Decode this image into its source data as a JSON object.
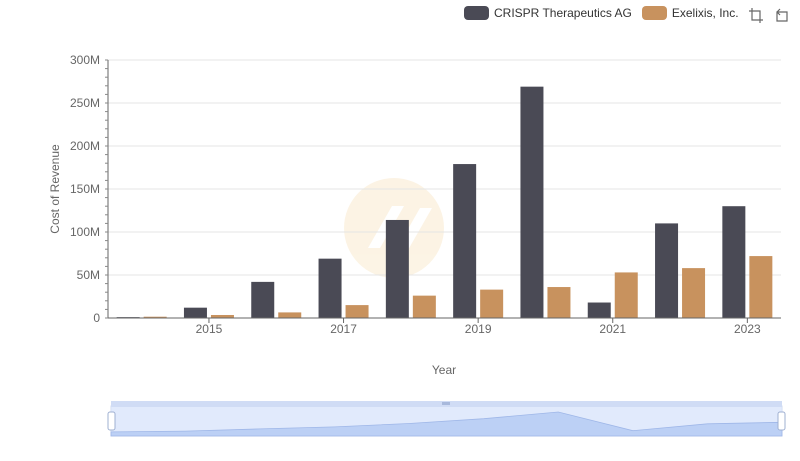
{
  "legend": {
    "items": [
      {
        "label": "CRISPR Therapeutics AG",
        "color": "#4a4a55"
      },
      {
        "label": "Exelixis, Inc.",
        "color": "#c8925e"
      }
    ]
  },
  "toolbox": {
    "icons": [
      "zoom-icon",
      "reset-icon"
    ]
  },
  "chart_data": {
    "type": "bar",
    "categories": [
      "2014",
      "2015",
      "2016",
      "2017",
      "2018",
      "2019",
      "2020",
      "2021",
      "2022",
      "2023"
    ],
    "x_tick_labels": [
      "2015",
      "2017",
      "2019",
      "2021",
      "2023"
    ],
    "y_tick_labels": [
      "0",
      "50M",
      "100M",
      "150M",
      "200M",
      "250M",
      "300M"
    ],
    "ylabel": "Cost of Revenue",
    "xlabel": "Year",
    "ylim": [
      0,
      300000000
    ],
    "series": [
      {
        "name": "CRISPR Therapeutics AG",
        "color": "#4a4a55",
        "values": [
          1000000,
          12000000,
          42000000,
          69000000,
          114000000,
          179000000,
          269000000,
          18000000,
          110000000,
          130000000
        ]
      },
      {
        "name": "Exelixis, Inc.",
        "color": "#c8925e",
        "values": [
          1500000,
          3500000,
          6500000,
          15000000,
          26000000,
          33000000,
          36000000,
          53000000,
          58000000,
          72000000
        ]
      }
    ],
    "grid": true,
    "legend_position": "top-right",
    "data_zoom": true
  }
}
